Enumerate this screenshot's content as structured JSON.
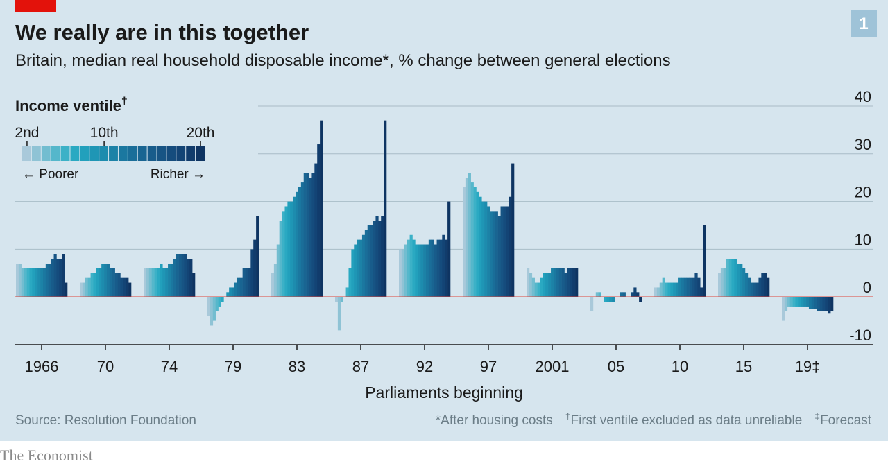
{
  "chart_data": {
    "type": "grouped-bar",
    "title": "We really are in this together",
    "subtitle": "Britain, median real household disposable income*, % change between general elections",
    "badge": "1",
    "x_label": "Parliaments beginning",
    "source": "Source: Resolution Foundation",
    "footnotes": [
      "*After housing costs",
      "†",
      "First ventile excluded as data unreliable",
      "‡",
      "Forecast"
    ],
    "brand": "The Economist",
    "legend": {
      "title": "Income ventile",
      "title_mark": "†",
      "poorer": "← Poorer",
      "richer": "Richer →",
      "ticks": [
        {
          "index": 0,
          "label": "2nd"
        },
        {
          "index": 8,
          "label": "10th"
        },
        {
          "index": 18,
          "label": "20th"
        }
      ]
    },
    "colors": [
      "#a9c9da",
      "#8fc3d5",
      "#72bdd0",
      "#55b7cb",
      "#3cb1c7",
      "#2aa9c2",
      "#22a0bc",
      "#1f96b5",
      "#1d8cae",
      "#1c82a7",
      "#1b78a0",
      "#1a6e99",
      "#196592",
      "#185c8b",
      "#175484",
      "#154c7d",
      "#134475",
      "#113c6c",
      "#0e3462"
    ],
    "categories": [
      "1966",
      "70",
      "74",
      "79",
      "83",
      "87",
      "92",
      "97",
      "2001",
      "05",
      "10",
      "15",
      "19‡"
    ],
    "values": [
      [
        7,
        7,
        6,
        6,
        6,
        6,
        6,
        6,
        6,
        6,
        6,
        7,
        7,
        8,
        9,
        8,
        8,
        9,
        3
      ],
      [
        3,
        3,
        4,
        4,
        5,
        5,
        6,
        6,
        7,
        7,
        7,
        6,
        6,
        5,
        5,
        4,
        4,
        4,
        3
      ],
      [
        6,
        6,
        6,
        6,
        6,
        6,
        7,
        6,
        6,
        7,
        7,
        8,
        9,
        9,
        9,
        9,
        8,
        8,
        5
      ],
      [
        -4,
        -6,
        -5,
        -3,
        -2,
        -1,
        0,
        1,
        2,
        2,
        3,
        4,
        4,
        6,
        6,
        6,
        10,
        12,
        17
      ],
      [
        5,
        7,
        11,
        16,
        18,
        19,
        20,
        20,
        21,
        22,
        23,
        24,
        26,
        26,
        25,
        26,
        28,
        32,
        37
      ],
      [
        -1,
        -7,
        -1,
        0,
        2,
        6,
        10,
        11,
        12,
        12,
        13,
        14,
        15,
        15,
        16,
        17,
        16,
        17,
        37
      ],
      [
        10,
        10,
        11,
        12,
        13,
        12,
        11,
        11,
        11,
        11,
        11,
        12,
        12,
        11,
        12,
        12,
        13,
        12,
        20
      ],
      [
        23,
        25,
        26,
        24,
        23,
        22,
        21,
        20,
        20,
        19,
        18,
        18,
        18,
        17,
        19,
        19,
        19,
        21,
        28
      ],
      [
        6,
        5,
        4,
        3,
        3,
        4,
        5,
        5,
        5,
        6,
        6,
        6,
        6,
        6,
        5,
        6,
        6,
        6,
        6
      ],
      [
        -3,
        0,
        1,
        1,
        0,
        -1,
        -1,
        -1,
        -1,
        0,
        0,
        1,
        1,
        0,
        0,
        1,
        2,
        1,
        -1
      ],
      [
        2,
        2,
        3,
        4,
        3,
        3,
        3,
        3,
        3,
        4,
        4,
        4,
        4,
        4,
        4,
        5,
        4,
        2,
        15
      ],
      [
        5,
        6,
        6,
        8,
        8,
        8,
        8,
        7,
        7,
        6,
        5,
        4,
        3,
        3,
        3,
        4,
        5,
        5,
        4
      ],
      [
        -5,
        -3,
        -2,
        -2,
        -2,
        -2,
        -2,
        -2,
        -2,
        -2,
        -2.5,
        -2.5,
        -2.5,
        -3,
        -3,
        -3,
        -3,
        -3.5,
        -3
      ]
    ],
    "ylim": [
      -10,
      40
    ],
    "yticks": [
      -10,
      0,
      10,
      20,
      30,
      40
    ],
    "grid": true
  }
}
